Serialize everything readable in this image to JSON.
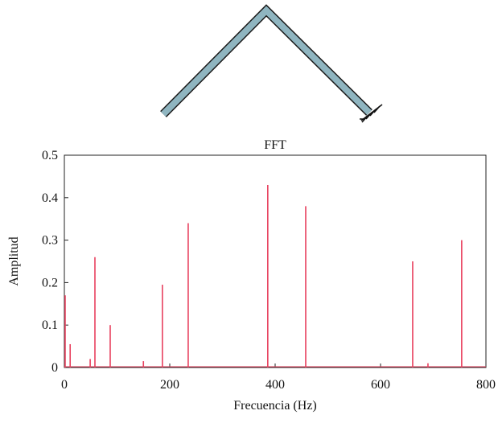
{
  "chart_data": {
    "type": "stem",
    "title": "FFT",
    "x_label": "Frecuencia (Hz)",
    "y_label": "Amplitud",
    "x": [
      1.5,
      11,
      49,
      58,
      87,
      150,
      186,
      235,
      386,
      458,
      661,
      690,
      754
    ],
    "values": [
      0.17,
      0.055,
      0.02,
      0.26,
      0.1,
      0.015,
      0.195,
      0.34,
      0.43,
      0.38,
      0.25,
      0.01,
      0.3
    ],
    "color": "#e8405e",
    "xlim": [
      0,
      800
    ],
    "xticks": [
      0,
      200,
      400,
      600,
      800
    ],
    "ylim": [
      0,
      0.5
    ],
    "yticks": [
      0,
      0.1,
      0.2,
      0.3,
      0.4,
      0.5
    ]
  }
}
